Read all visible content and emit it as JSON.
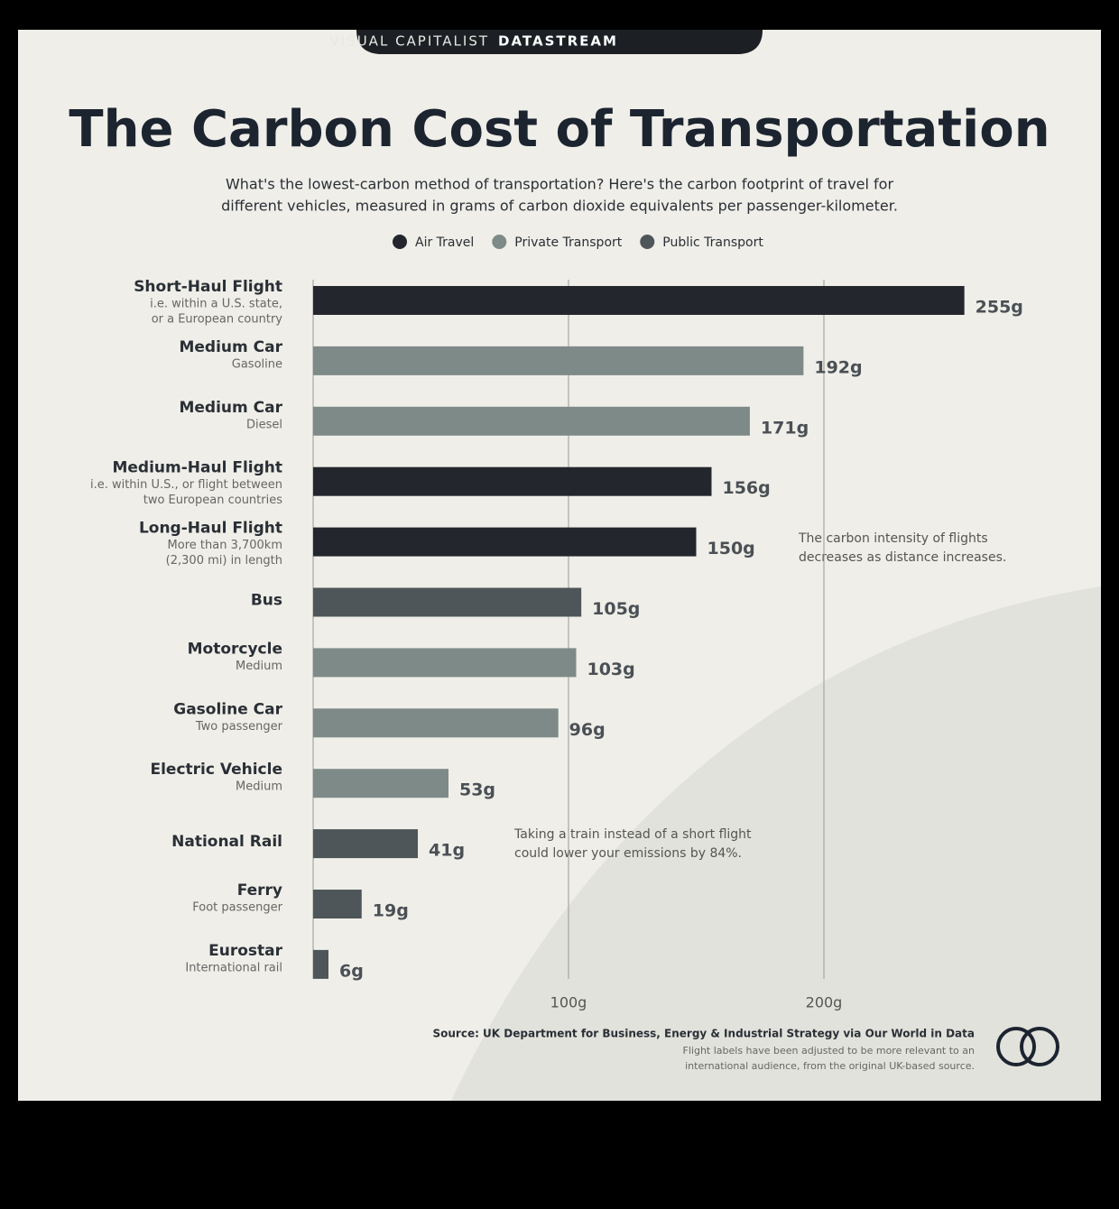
{
  "header": {
    "brand": "VISUAL CAPITALIST",
    "product": "DATASTREAM"
  },
  "chart_data": {
    "type": "bar",
    "orientation": "horizontal",
    "title": "The Carbon Cost of Transportation",
    "subtitle": [
      "What's the lowest-carbon method of transportation? Here's the carbon footprint of travel for",
      "different vehicles, measured in grams of carbon dioxide equivalents per passenger-kilometer."
    ],
    "categories": [
      "Short-Haul Flight",
      "Medium Car",
      "Medium Car",
      "Medium-Haul Flight",
      "Long-Haul Flight",
      "Bus",
      "Motorcycle",
      "Gasoline Car",
      "Electric Vehicle",
      "National Rail",
      "Ferry",
      "Eurostar"
    ],
    "sublabels": [
      [
        "i.e. within a U.S. state,",
        "or a European country"
      ],
      [
        "Gasoline"
      ],
      [
        "Diesel"
      ],
      [
        "i.e. within U.S., or flight between",
        "two European countries"
      ],
      [
        "More than 3,700km",
        "(2,300 mi) in length"
      ],
      null,
      [
        "Medium"
      ],
      [
        "Two passenger"
      ],
      [
        "Medium"
      ],
      null,
      [
        "Foot passenger"
      ],
      [
        "International rail"
      ]
    ],
    "series": [
      {
        "name": "Air Travel",
        "color": "#23272d",
        "values": [
          255,
          null,
          null,
          156,
          150,
          null,
          null,
          null,
          null,
          null,
          null,
          null
        ],
        "value_labels": [
          "255g",
          null,
          null,
          "156g",
          "150g",
          null,
          null,
          null,
          null,
          null,
          null,
          null
        ]
      },
      {
        "name": "Private Transport",
        "color": "#7e8a87",
        "values": [
          null,
          192,
          171,
          null,
          null,
          null,
          103,
          96,
          53,
          null,
          null,
          null
        ],
        "value_labels": [
          null,
          "192g",
          "171g",
          null,
          null,
          null,
          "103g",
          "96g",
          "53g",
          null,
          null,
          null
        ]
      },
      {
        "name": "Public Transport",
        "color": "#4e565a",
        "values": [
          null,
          null,
          null,
          null,
          null,
          105,
          null,
          null,
          null,
          41,
          19,
          6
        ],
        "value_labels": [
          null,
          null,
          null,
          null,
          null,
          "105g",
          null,
          null,
          null,
          "41g",
          "19g",
          "6g"
        ]
      }
    ],
    "xlim": [
      0,
      300
    ],
    "xticks": [
      {
        "value": 100,
        "label": "100g"
      },
      {
        "value": 200,
        "label": "200g"
      }
    ],
    "grid": true,
    "annotations": [
      [
        "The carbon intensity of flights",
        "decreases as distance increases."
      ],
      [
        "Taking a train instead of a short flight",
        "could lower your emissions by 84%."
      ]
    ],
    "source": "Source: UK Department for Business, Energy & Industrial Strategy via Our World in Data",
    "note": [
      "Flight labels have been adjusted to be more relevant to an",
      "international audience, from the original UK-based source."
    ]
  }
}
